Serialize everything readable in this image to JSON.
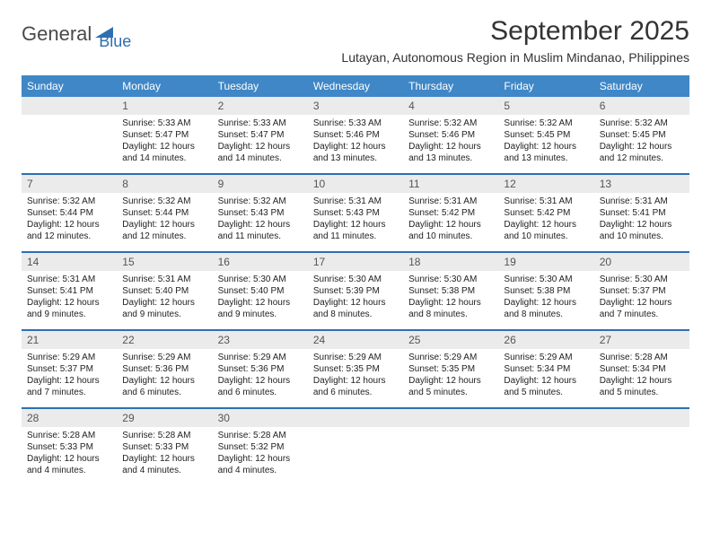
{
  "logo": {
    "word1": "General",
    "word2": "Blue"
  },
  "title": "September 2025",
  "location": "Lutayan, Autonomous Region in Muslim Mindanao, Philippines",
  "colors": {
    "header_bg": "#3f87c6",
    "header_text": "#ffffff",
    "daynum_bg": "#ebebeb",
    "daynum_text": "#555555",
    "rule": "#2f6fb0",
    "body_text": "#222222",
    "logo_gray": "#4a4a4a",
    "logo_blue": "#2f6fb0",
    "background": "#ffffff"
  },
  "typography": {
    "title_fontsize": 30,
    "location_fontsize": 14,
    "header_fontsize": 12,
    "daynum_fontsize": 12,
    "cell_fontsize": 10
  },
  "day_headers": [
    "Sunday",
    "Monday",
    "Tuesday",
    "Wednesday",
    "Thursday",
    "Friday",
    "Saturday"
  ],
  "weeks": [
    {
      "nums": [
        "",
        "1",
        "2",
        "3",
        "4",
        "5",
        "6"
      ],
      "cells": [
        null,
        {
          "sunrise": "Sunrise: 5:33 AM",
          "sunset": "Sunset: 5:47 PM",
          "day1": "Daylight: 12 hours",
          "day2": "and 14 minutes."
        },
        {
          "sunrise": "Sunrise: 5:33 AM",
          "sunset": "Sunset: 5:47 PM",
          "day1": "Daylight: 12 hours",
          "day2": "and 14 minutes."
        },
        {
          "sunrise": "Sunrise: 5:33 AM",
          "sunset": "Sunset: 5:46 PM",
          "day1": "Daylight: 12 hours",
          "day2": "and 13 minutes."
        },
        {
          "sunrise": "Sunrise: 5:32 AM",
          "sunset": "Sunset: 5:46 PM",
          "day1": "Daylight: 12 hours",
          "day2": "and 13 minutes."
        },
        {
          "sunrise": "Sunrise: 5:32 AM",
          "sunset": "Sunset: 5:45 PM",
          "day1": "Daylight: 12 hours",
          "day2": "and 13 minutes."
        },
        {
          "sunrise": "Sunrise: 5:32 AM",
          "sunset": "Sunset: 5:45 PM",
          "day1": "Daylight: 12 hours",
          "day2": "and 12 minutes."
        }
      ]
    },
    {
      "nums": [
        "7",
        "8",
        "9",
        "10",
        "11",
        "12",
        "13"
      ],
      "cells": [
        {
          "sunrise": "Sunrise: 5:32 AM",
          "sunset": "Sunset: 5:44 PM",
          "day1": "Daylight: 12 hours",
          "day2": "and 12 minutes."
        },
        {
          "sunrise": "Sunrise: 5:32 AM",
          "sunset": "Sunset: 5:44 PM",
          "day1": "Daylight: 12 hours",
          "day2": "and 12 minutes."
        },
        {
          "sunrise": "Sunrise: 5:32 AM",
          "sunset": "Sunset: 5:43 PM",
          "day1": "Daylight: 12 hours",
          "day2": "and 11 minutes."
        },
        {
          "sunrise": "Sunrise: 5:31 AM",
          "sunset": "Sunset: 5:43 PM",
          "day1": "Daylight: 12 hours",
          "day2": "and 11 minutes."
        },
        {
          "sunrise": "Sunrise: 5:31 AM",
          "sunset": "Sunset: 5:42 PM",
          "day1": "Daylight: 12 hours",
          "day2": "and 10 minutes."
        },
        {
          "sunrise": "Sunrise: 5:31 AM",
          "sunset": "Sunset: 5:42 PM",
          "day1": "Daylight: 12 hours",
          "day2": "and 10 minutes."
        },
        {
          "sunrise": "Sunrise: 5:31 AM",
          "sunset": "Sunset: 5:41 PM",
          "day1": "Daylight: 12 hours",
          "day2": "and 10 minutes."
        }
      ]
    },
    {
      "nums": [
        "14",
        "15",
        "16",
        "17",
        "18",
        "19",
        "20"
      ],
      "cells": [
        {
          "sunrise": "Sunrise: 5:31 AM",
          "sunset": "Sunset: 5:41 PM",
          "day1": "Daylight: 12 hours",
          "day2": "and 9 minutes."
        },
        {
          "sunrise": "Sunrise: 5:31 AM",
          "sunset": "Sunset: 5:40 PM",
          "day1": "Daylight: 12 hours",
          "day2": "and 9 minutes."
        },
        {
          "sunrise": "Sunrise: 5:30 AM",
          "sunset": "Sunset: 5:40 PM",
          "day1": "Daylight: 12 hours",
          "day2": "and 9 minutes."
        },
        {
          "sunrise": "Sunrise: 5:30 AM",
          "sunset": "Sunset: 5:39 PM",
          "day1": "Daylight: 12 hours",
          "day2": "and 8 minutes."
        },
        {
          "sunrise": "Sunrise: 5:30 AM",
          "sunset": "Sunset: 5:38 PM",
          "day1": "Daylight: 12 hours",
          "day2": "and 8 minutes."
        },
        {
          "sunrise": "Sunrise: 5:30 AM",
          "sunset": "Sunset: 5:38 PM",
          "day1": "Daylight: 12 hours",
          "day2": "and 8 minutes."
        },
        {
          "sunrise": "Sunrise: 5:30 AM",
          "sunset": "Sunset: 5:37 PM",
          "day1": "Daylight: 12 hours",
          "day2": "and 7 minutes."
        }
      ]
    },
    {
      "nums": [
        "21",
        "22",
        "23",
        "24",
        "25",
        "26",
        "27"
      ],
      "cells": [
        {
          "sunrise": "Sunrise: 5:29 AM",
          "sunset": "Sunset: 5:37 PM",
          "day1": "Daylight: 12 hours",
          "day2": "and 7 minutes."
        },
        {
          "sunrise": "Sunrise: 5:29 AM",
          "sunset": "Sunset: 5:36 PM",
          "day1": "Daylight: 12 hours",
          "day2": "and 6 minutes."
        },
        {
          "sunrise": "Sunrise: 5:29 AM",
          "sunset": "Sunset: 5:36 PM",
          "day1": "Daylight: 12 hours",
          "day2": "and 6 minutes."
        },
        {
          "sunrise": "Sunrise: 5:29 AM",
          "sunset": "Sunset: 5:35 PM",
          "day1": "Daylight: 12 hours",
          "day2": "and 6 minutes."
        },
        {
          "sunrise": "Sunrise: 5:29 AM",
          "sunset": "Sunset: 5:35 PM",
          "day1": "Daylight: 12 hours",
          "day2": "and 5 minutes."
        },
        {
          "sunrise": "Sunrise: 5:29 AM",
          "sunset": "Sunset: 5:34 PM",
          "day1": "Daylight: 12 hours",
          "day2": "and 5 minutes."
        },
        {
          "sunrise": "Sunrise: 5:28 AM",
          "sunset": "Sunset: 5:34 PM",
          "day1": "Daylight: 12 hours",
          "day2": "and 5 minutes."
        }
      ]
    },
    {
      "nums": [
        "28",
        "29",
        "30",
        "",
        "",
        "",
        ""
      ],
      "cells": [
        {
          "sunrise": "Sunrise: 5:28 AM",
          "sunset": "Sunset: 5:33 PM",
          "day1": "Daylight: 12 hours",
          "day2": "and 4 minutes."
        },
        {
          "sunrise": "Sunrise: 5:28 AM",
          "sunset": "Sunset: 5:33 PM",
          "day1": "Daylight: 12 hours",
          "day2": "and 4 minutes."
        },
        {
          "sunrise": "Sunrise: 5:28 AM",
          "sunset": "Sunset: 5:32 PM",
          "day1": "Daylight: 12 hours",
          "day2": "and 4 minutes."
        },
        null,
        null,
        null,
        null
      ]
    }
  ]
}
